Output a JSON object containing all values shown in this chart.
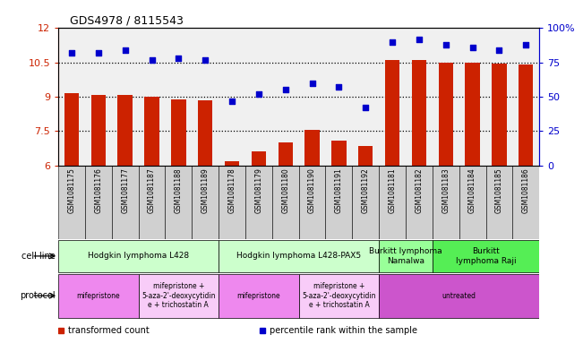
{
  "title": "GDS4978 / 8115543",
  "samples": [
    "GSM1081175",
    "GSM1081176",
    "GSM1081177",
    "GSM1081187",
    "GSM1081188",
    "GSM1081189",
    "GSM1081178",
    "GSM1081179",
    "GSM1081180",
    "GSM1081190",
    "GSM1081191",
    "GSM1081192",
    "GSM1081181",
    "GSM1081182",
    "GSM1081183",
    "GSM1081184",
    "GSM1081185",
    "GSM1081186"
  ],
  "bar_values": [
    9.15,
    9.1,
    9.1,
    9.0,
    8.9,
    8.85,
    6.2,
    6.6,
    7.0,
    7.55,
    7.1,
    6.85,
    10.6,
    10.6,
    10.5,
    10.5,
    10.45,
    10.4
  ],
  "dot_percentiles": [
    82,
    82,
    84,
    77,
    78,
    77,
    47,
    52,
    55,
    60,
    57,
    42,
    90,
    92,
    88,
    86,
    84,
    88
  ],
  "ylim_left": [
    6,
    12
  ],
  "ylim_right": [
    0,
    100
  ],
  "yticks_left": [
    6,
    7.5,
    9,
    10.5,
    12
  ],
  "yticks_right": [
    0,
    25,
    50,
    75,
    100
  ],
  "ytick_labels_right": [
    "0",
    "25",
    "50",
    "75",
    "100%"
  ],
  "bar_color": "#cc2200",
  "dot_color": "#0000cc",
  "bg_color": "#f0f0f0",
  "xticklabel_bg": "#d0d0d0",
  "cell_line_groups": [
    {
      "label": "Hodgkin lymphoma L428",
      "start": 0,
      "end": 5,
      "color": "#ccffcc"
    },
    {
      "label": "Hodgkin lymphoma L428-PAX5",
      "start": 6,
      "end": 11,
      "color": "#ccffcc"
    },
    {
      "label": "Burkitt lymphoma\nNamalwa",
      "start": 12,
      "end": 13,
      "color": "#99ff99"
    },
    {
      "label": "Burkitt\nlymphoma Raji",
      "start": 14,
      "end": 17,
      "color": "#55ee55"
    }
  ],
  "protocol_groups": [
    {
      "label": "mifepristone",
      "start": 0,
      "end": 2,
      "color": "#ee88ee"
    },
    {
      "label": "mifepristone +\n5-aza-2'-deoxycytidin\ne + trichostatin A",
      "start": 3,
      "end": 5,
      "color": "#f8ccf8"
    },
    {
      "label": "mifepristone",
      "start": 6,
      "end": 8,
      "color": "#ee88ee"
    },
    {
      "label": "mifepristone +\n5-aza-2'-deoxycytidin\ne + trichostatin A",
      "start": 9,
      "end": 11,
      "color": "#f8ccf8"
    },
    {
      "label": "untreated",
      "start": 12,
      "end": 17,
      "color": "#cc55cc"
    }
  ],
  "legend_items": [
    {
      "label": "transformed count",
      "color": "#cc2200"
    },
    {
      "label": "percentile rank within the sample",
      "color": "#0000cc"
    }
  ]
}
